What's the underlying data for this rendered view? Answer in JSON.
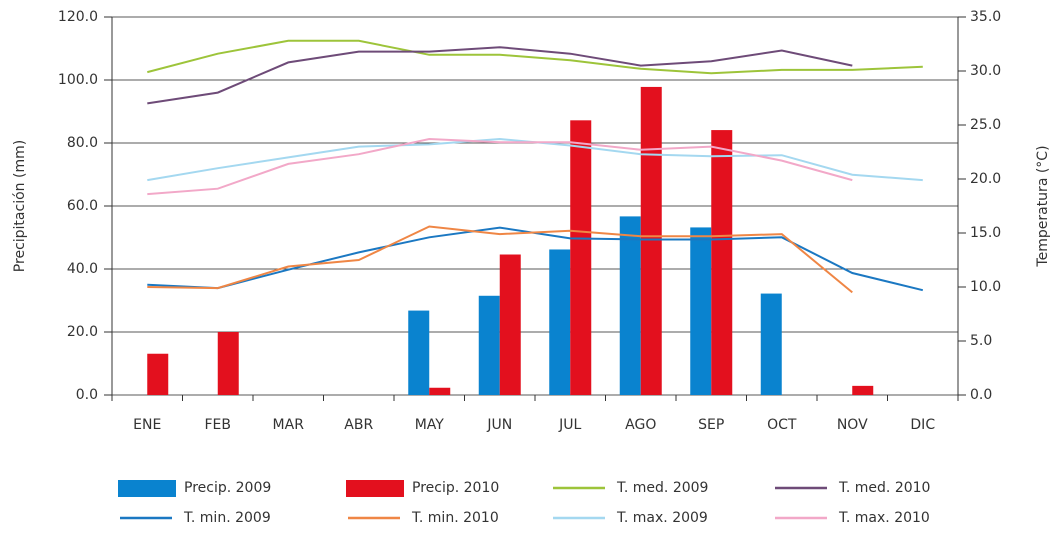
{
  "chart_data": {
    "type": "combo",
    "categories": [
      "ENE",
      "FEB",
      "MAR",
      "ABR",
      "MAY",
      "JUN",
      "JUL",
      "AGO",
      "SEP",
      "OCT",
      "NOV",
      "DIC"
    ],
    "ylabel": "Precipitación (mm)",
    "y2label": "Temperatura (°C)",
    "ylim": [
      0,
      120
    ],
    "yticks": [
      {
        "value": 0,
        "label": "0.0"
      },
      {
        "value": 20,
        "label": "20.0"
      },
      {
        "value": 40,
        "label": "40.0"
      },
      {
        "value": 60,
        "label": "60.0"
      },
      {
        "value": 80,
        "label": "80.0"
      },
      {
        "value": 100,
        "label": "100.0"
      },
      {
        "value": 120,
        "label": "120.0"
      }
    ],
    "y2lim": [
      0,
      35
    ],
    "y2ticks": [
      {
        "value": 0,
        "label": "0.0"
      },
      {
        "value": 5,
        "label": "5.0"
      },
      {
        "value": 10,
        "label": "10.0"
      },
      {
        "value": 15,
        "label": "15.0"
      },
      {
        "value": 20,
        "label": "20.0"
      },
      {
        "value": 25,
        "label": "25.0"
      },
      {
        "value": 30,
        "label": "30.0"
      },
      {
        "value": 35,
        "label": "35.0"
      }
    ],
    "grid": true,
    "series": [
      {
        "name": "Precip. 2009",
        "type": "bar",
        "color": "#0a83cf",
        "values": [
          null,
          null,
          null,
          null,
          26.8,
          31.5,
          46.2,
          56.7,
          53.2,
          32.2,
          null,
          null
        ]
      },
      {
        "name": "Precip. 2010",
        "type": "bar",
        "color": "#e3101e",
        "values": [
          13.1,
          20.0,
          null,
          null,
          2.3,
          44.6,
          87.2,
          97.8,
          84.1,
          null,
          2.9,
          null
        ]
      },
      {
        "name": "T. med. 2009",
        "type": "line",
        "axis": "y2",
        "color": "#9dc43a",
        "values": [
          29.9,
          31.6,
          32.8,
          32.8,
          31.5,
          31.5,
          31.0,
          30.2,
          29.8,
          30.1,
          30.1,
          30.4
        ]
      },
      {
        "name": "T. med. 2010",
        "type": "line",
        "axis": "y2",
        "color": "#6e4b78",
        "values": [
          27.0,
          28.0,
          30.8,
          31.8,
          31.8,
          32.2,
          31.6,
          30.5,
          30.9,
          31.9,
          30.5,
          null
        ]
      },
      {
        "name": "T. min. 2009",
        "type": "line",
        "axis": "y2",
        "color": "#1b78c2",
        "values": [
          10.2,
          9.9,
          11.6,
          13.2,
          14.6,
          15.5,
          14.5,
          14.4,
          14.4,
          14.6,
          11.3,
          9.7
        ]
      },
      {
        "name": "T. min. 2010",
        "type": "line",
        "axis": "y2",
        "color": "#ef8645",
        "values": [
          10.0,
          9.9,
          11.9,
          12.5,
          15.6,
          14.9,
          15.2,
          14.7,
          14.7,
          14.9,
          9.5,
          null
        ]
      },
      {
        "name": "T. max. 2009",
        "type": "line",
        "axis": "y2",
        "color": "#a4d8f0",
        "values": [
          19.9,
          21.0,
          22.0,
          23.0,
          23.2,
          23.7,
          23.1,
          22.3,
          22.1,
          22.2,
          20.4,
          19.9
        ]
      },
      {
        "name": "T. max. 2010",
        "type": "line",
        "axis": "y2",
        "color": "#f2a8c8",
        "values": [
          18.6,
          19.1,
          21.4,
          22.3,
          23.7,
          23.4,
          23.4,
          22.7,
          23.0,
          21.7,
          19.9,
          null
        ]
      }
    ]
  }
}
